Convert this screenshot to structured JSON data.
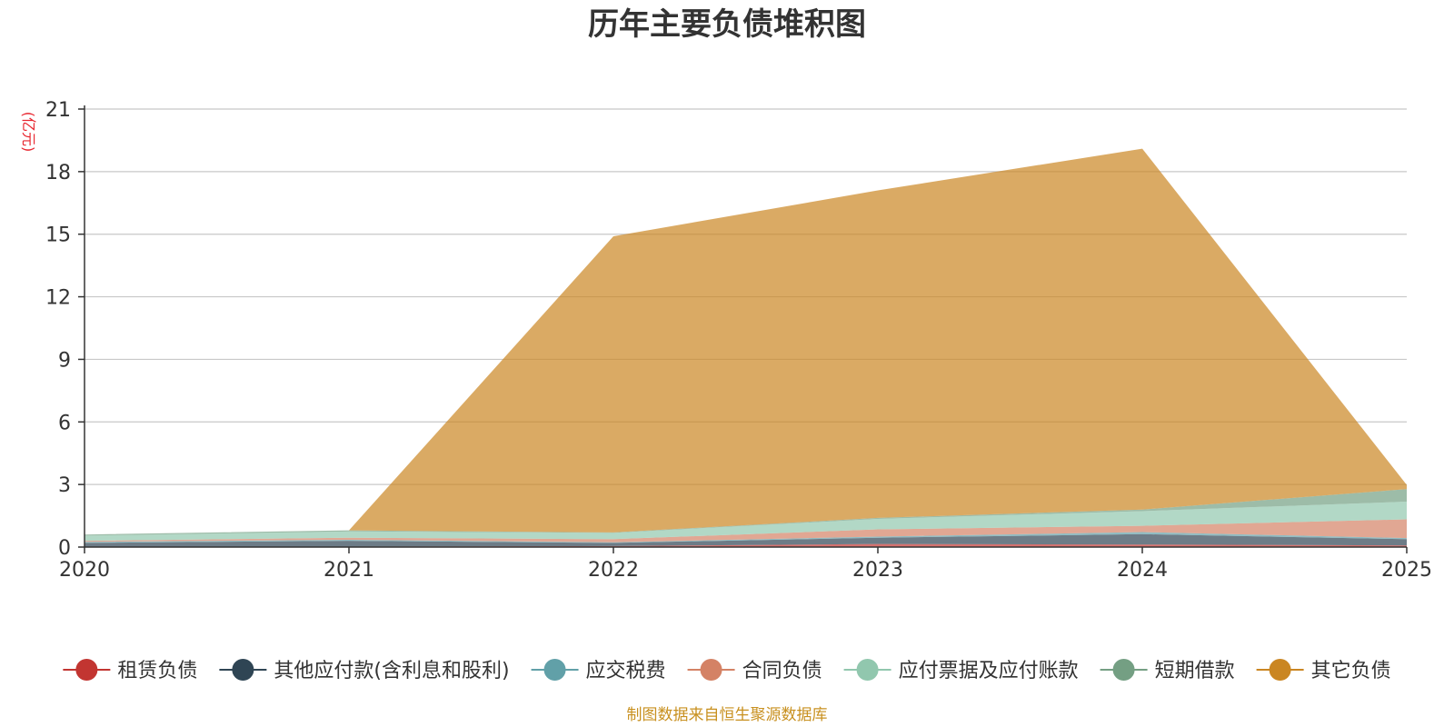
{
  "chart_data": {
    "type": "area",
    "stacked": true,
    "title": "历年主要负债堆积图",
    "unit_label": "(亿元)",
    "x": [
      "2020",
      "2021",
      "2022",
      "2023",
      "2024",
      "2025"
    ],
    "ylim": [
      0,
      21
    ],
    "yticks": [
      "0",
      "3",
      "6",
      "9",
      "12",
      "15",
      "18",
      "21"
    ],
    "grid": true,
    "legend_position": "bottom",
    "series": [
      {
        "name": "租赁负债",
        "color": "#c23531",
        "values": [
          0.02,
          0.02,
          0.05,
          0.15,
          0.12,
          0.08
        ]
      },
      {
        "name": "其他应付款(含利息和股利)",
        "color": "#2f4554",
        "values": [
          0.18,
          0.28,
          0.15,
          0.3,
          0.5,
          0.3
        ]
      },
      {
        "name": "应交税费",
        "color": "#61a0a8",
        "values": [
          0.05,
          0.05,
          0.03,
          0.05,
          0.1,
          0.05
        ]
      },
      {
        "name": "合同负债",
        "color": "#d48265",
        "values": [
          0.05,
          0.1,
          0.15,
          0.35,
          0.3,
          0.9
        ]
      },
      {
        "name": "应付票据及应付账款",
        "color": "#91c7ae",
        "values": [
          0.25,
          0.3,
          0.3,
          0.5,
          0.7,
          0.85
        ]
      },
      {
        "name": "短期借款",
        "color": "#749f83",
        "values": [
          0.05,
          0.05,
          0.02,
          0.05,
          0.08,
          0.6
        ]
      },
      {
        "name": "其它负债",
        "color": "#ca8622",
        "values": [
          0.0,
          0.0,
          14.2,
          15.7,
          17.3,
          0.2
        ]
      }
    ]
  },
  "footer": {
    "source": "制图数据来自恒生聚源数据库"
  }
}
